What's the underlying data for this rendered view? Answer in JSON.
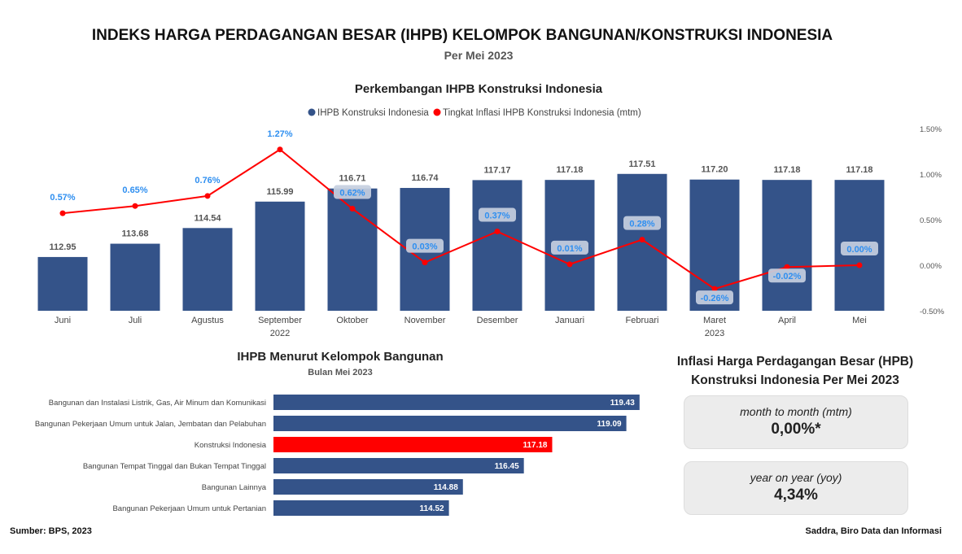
{
  "header": {
    "title": "INDEKS HARGA PERDAGANGAN BESAR (IHPB) KELOMPOK BANGUNAN/KONSTRUKSI INDONESIA",
    "subtitle": "Per Mei 2023"
  },
  "chart_data": [
    {
      "type": "bar+line",
      "title": "Perkembangan IHPB Konstruksi Indonesia",
      "legend": [
        "IHPB Konstruksi Indonesia",
        "Tingkat Inflasi IHPB Konstruksi Indonesia (mtm)"
      ],
      "legend_position": "top",
      "categories": [
        "Juni",
        "Juli",
        "Agustus",
        "September",
        "Oktober",
        "November",
        "Desember",
        "Januari",
        "Februari",
        "Maret",
        "April",
        "Mei"
      ],
      "year_labels": [
        {
          "after": "September",
          "label": "2022"
        },
        {
          "after": "Maret",
          "label": "2023"
        }
      ],
      "series": [
        {
          "name": "IHPB Konstruksi Indonesia",
          "type": "bar",
          "values": [
            112.95,
            113.68,
            114.54,
            115.99,
            116.71,
            116.74,
            117.17,
            117.18,
            117.51,
            117.2,
            117.18,
            117.18
          ],
          "labels": [
            "112.95",
            "113.68",
            "114.54",
            "115.99",
            "116.71",
            "116.74",
            "117.17",
            "117.18",
            "117.51",
            "117.20",
            "117.18",
            "117.18"
          ]
        },
        {
          "name": "Tingkat Inflasi IHPB Konstruksi Indonesia (mtm)",
          "type": "line",
          "axis": "right",
          "values": [
            0.57,
            0.65,
            0.76,
            1.27,
            0.62,
            0.03,
            0.37,
            0.01,
            0.28,
            -0.26,
            -0.02,
            0.0
          ],
          "labels": [
            "0.57%",
            "0.65%",
            "0.76%",
            "1.27%",
            "0.62%",
            "0.03%",
            "0.37%",
            "0.01%",
            "0.28%",
            "-0.26%",
            "-0.02%",
            "0.00%"
          ]
        }
      ],
      "bar_axis_min": 110,
      "y2lim": [
        -0.5,
        1.5
      ],
      "y2ticks": [
        "1.50%",
        "1.00%",
        "0.50%",
        "0.00%",
        "-0.50%"
      ],
      "y2tick_values": [
        1.5,
        1.0,
        0.5,
        0.0,
        -0.5
      ],
      "colors": {
        "bar": "#345389",
        "line": "#ff0000",
        "label_blue": "#2f8ff0"
      }
    },
    {
      "type": "bar",
      "orientation": "horizontal",
      "title": "IHPB Menurut Kelompok Bangunan",
      "subtitle": "Bulan Mei 2023",
      "categories": [
        "Bangunan dan Instalasi Listrik, Gas, Air Minum dan Komunikasi",
        "Bangunan Pekerjaan Umum untuk Jalan, Jembatan dan Pelabuhan",
        "Konstruksi Indonesia",
        "Bangunan Tempat Tinggal dan Bukan Tempat Tinggal",
        "Bangunan Lainnya",
        "Bangunan Pekerjaan Umum untuk Pertanian"
      ],
      "values": [
        119.43,
        119.09,
        117.18,
        116.45,
        114.88,
        114.52
      ],
      "labels": [
        "119.43",
        "119.09",
        "117.18",
        "116.45",
        "114.88",
        "114.52"
      ],
      "highlight": "Konstruksi Indonesia",
      "axis_min": 110,
      "colors": {
        "bar": "#345389",
        "highlight": "#ff0000"
      }
    }
  ],
  "inflation_panel": {
    "title_line1": "Inflasi Harga Perdagangan Besar (HPB)",
    "title_line2": "Konstruksi Indonesia Per Mei 2023",
    "mtm_label": "month to month (mtm)",
    "mtm_value": "0,00%*",
    "yoy_label": "year on year (yoy)",
    "yoy_value": "4,34%"
  },
  "footer": {
    "source": "Sumber: BPS, 2023",
    "credit": "Saddra, Biro Data dan Informasi"
  }
}
